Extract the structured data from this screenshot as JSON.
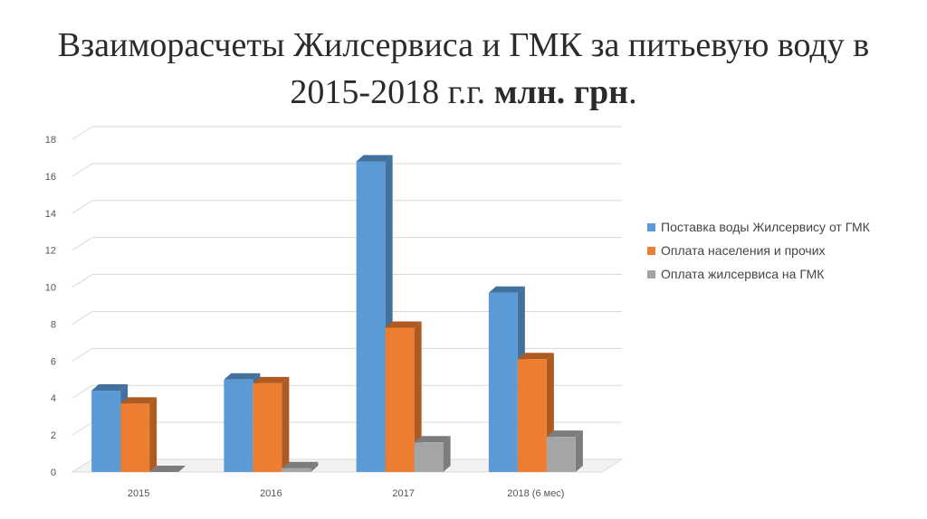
{
  "title": {
    "line1": "Взаиморасчеты Жилсервиса и ГМК за питьевую воду в",
    "line2_main": "2015-2018 г.г.",
    "line2_bold": "млн. грн",
    "line2_end": "."
  },
  "chart_data": {
    "type": "bar",
    "categories": [
      "2015",
      "2016",
      "2017",
      "2018 (6 мес)"
    ],
    "series": [
      {
        "name": "Поставка воды Жилсервису  от ГМК",
        "color": "#5b9bd5",
        "side": "#41719c",
        "values": [
          4.4,
          5.0,
          16.8,
          9.7
        ]
      },
      {
        "name": "Оплата населения и прочих",
        "color": "#ed7d31",
        "side": "#ae5a21",
        "values": [
          3.7,
          4.8,
          7.8,
          6.1
        ]
      },
      {
        "name": "Оплата жилсервиса на ГМК",
        "color": "#a5a5a5",
        "side": "#7c7c7c",
        "values": [
          0.0,
          0.2,
          1.6,
          1.9
        ]
      }
    ],
    "y_ticks": [
      "0",
      "2",
      "4",
      "6",
      "8",
      "10",
      "12",
      "14",
      "16",
      "18"
    ],
    "ylim": [
      0,
      18
    ],
    "grid": true,
    "legend_position": "right",
    "style": "3d-clustered-column"
  }
}
